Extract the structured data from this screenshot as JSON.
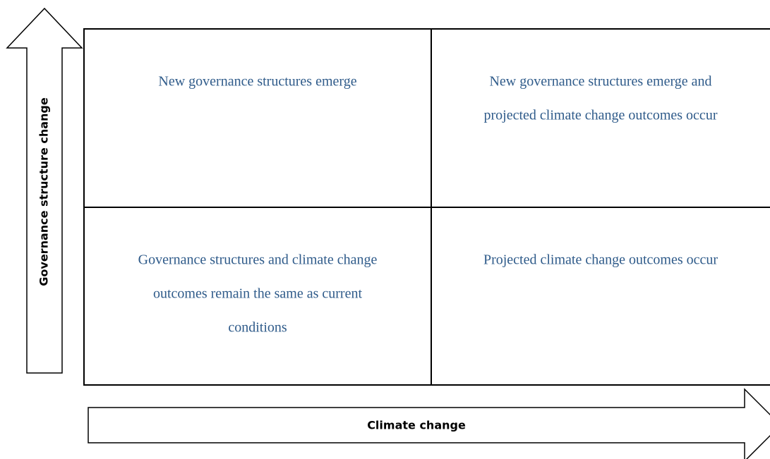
{
  "y_axis": {
    "label": "Governance structure change"
  },
  "x_axis": {
    "label": "Climate change"
  },
  "quadrants": [
    {
      "lines": [
        "New governance structures emerge"
      ]
    },
    {
      "lines": [
        "New governance structures emerge and",
        "projected climate change outcomes occur"
      ]
    },
    {
      "lines": [
        "Governance structures and climate change",
        "outcomes remain the same as current",
        "conditions"
      ]
    },
    {
      "lines": [
        "Projected climate change outcomes occur"
      ]
    }
  ]
}
